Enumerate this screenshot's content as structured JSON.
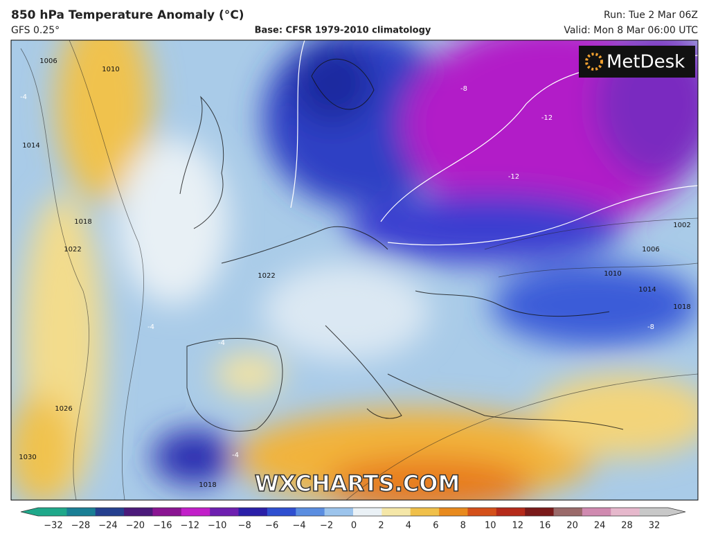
{
  "header": {
    "title": "850 hPa Temperature Anomaly (°C)",
    "model": "GFS 0.25°",
    "base": "Base: CFSR 1979-2010 climatology",
    "run": "Run: Tue 2 Mar 06Z",
    "valid": "Valid: Mon 8 Mar 06:00 UTC"
  },
  "logo": "MetDesk",
  "watermark": "WXCHARTS.COM",
  "map_labels": [
    "1006",
    "1010",
    "1014",
    "1018",
    "1022",
    "1022",
    "1026",
    "1030",
    "1018",
    "1002",
    "1006",
    "1010",
    "1014",
    "1018",
    "-4",
    "-8",
    "-12",
    "-12",
    "-4",
    "-4",
    "-8",
    "-4"
  ],
  "colorbar": {
    "ticks": [
      "−32",
      "−28",
      "−24",
      "−20",
      "−16",
      "−12",
      "−10",
      "−8",
      "−6",
      "−4",
      "−2",
      "0",
      "2",
      "4",
      "6",
      "8",
      "10",
      "12",
      "16",
      "20",
      "24",
      "28",
      "32"
    ],
    "colors": [
      "#1fa88a",
      "#1a7f95",
      "#25408f",
      "#4b1a7a",
      "#8a1592",
      "#c21fc9",
      "#6e1fb0",
      "#2a1fa8",
      "#2f4fd0",
      "#5a8de0",
      "#9cc4ec",
      "#eaf1f6",
      "#f5e7a8",
      "#f0c04a",
      "#e88a1e",
      "#d4501a",
      "#b52a1a",
      "#7a1a1a",
      "#9a6a6a",
      "#d08ab0",
      "#e6b8cc",
      "#c8c8c8"
    ]
  }
}
